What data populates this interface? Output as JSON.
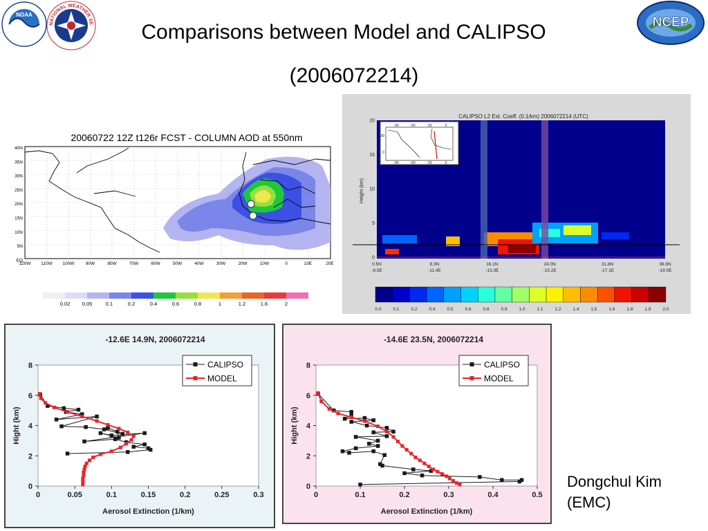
{
  "slide": {
    "title_line1": "Comparisons between Model and CALIPSO",
    "title_line2": "(2006072214)",
    "author_name": "Dongchul Kim",
    "author_org": "(EMC)"
  },
  "logos": {
    "noaa": "NOAA",
    "nws": "NATIONAL WEATHER SERVICE",
    "ncep": "NCEP"
  },
  "aod_map": {
    "title": "20060722 12Z t126r FCST - COLUMN AOD at 550nm",
    "lat_labels": [
      "40N",
      "35N",
      "30N",
      "25N",
      "20N",
      "15N",
      "10N",
      "5N",
      "EQ"
    ],
    "lon_labels": [
      "120W",
      "110W",
      "100W",
      "90W",
      "80W",
      "70W",
      "60W",
      "50W",
      "40W",
      "30W",
      "20W",
      "10W",
      "0",
      "10E",
      "20E"
    ],
    "colorbar_labels": [
      "0.02",
      "0.05",
      "0.1",
      "0.2",
      "0.4",
      "0.6",
      "0.8",
      "1",
      "1.2",
      "1.6",
      "2"
    ],
    "colorbar_colors": [
      "#f0f0f0",
      "#dcdcf8",
      "#b4b4f0",
      "#7a86ea",
      "#3c50e6",
      "#1ec83c",
      "#96e03c",
      "#f0e650",
      "#f0a032",
      "#e86428",
      "#e83c3c",
      "#f06eb4"
    ]
  },
  "calipso_curtain": {
    "title": "CALIPSO L2 Ext. Coeff. (0.1/km)  2006072214 (UTC)",
    "ylabel": "Height (km)",
    "y_ticks": [
      "20",
      "15",
      "10",
      "5",
      "0"
    ],
    "x_lat_labels": [
      "0.5N",
      "8.3N",
      "16.1N",
      "24.0N",
      "31.8N",
      "39.6N"
    ],
    "x_lon_labels": [
      "-9.5E",
      "-11.4E",
      "-13.3E",
      "-15.2E",
      "-17.1E",
      "-19.0E"
    ],
    "inset_lon_labels": [
      "-90",
      "-60",
      "-30",
      "0"
    ],
    "inset_lat_labels": [
      "30",
      "0"
    ],
    "colorbar_labels": [
      "0.0",
      "0.1",
      "0.2",
      "0.4",
      "0.5",
      "0.6",
      "0.8",
      "0.9",
      "1.0",
      "1.1",
      "1.2",
      "1.4",
      "1.5",
      "1.6",
      "1.8",
      "1.9",
      "2.0"
    ],
    "colorbar_colors": [
      "#00008c",
      "#0000c8",
      "#0028f0",
      "#0064ff",
      "#00a0ff",
      "#00d2ff",
      "#28ffdc",
      "#64ffa0",
      "#a0ff64",
      "#dcff28",
      "#fff000",
      "#ffbe00",
      "#ff8c00",
      "#ff5000",
      "#f01400",
      "#c80000",
      "#8c0000"
    ]
  },
  "chart_data": [
    {
      "type": "line",
      "title": "-12.6E 14.9N, 2006072214",
      "xlabel": "Aerosol Extinction (1/km)",
      "ylabel": "Hight (km)",
      "xlim": [
        0,
        0.3
      ],
      "ylim": [
        0,
        8
      ],
      "x_ticks": [
        "0",
        "0.05",
        "0.1",
        "0.15",
        "0.2",
        "0.25",
        "0.3"
      ],
      "y_ticks": [
        "0",
        "2",
        "4",
        "6",
        "8"
      ],
      "legend_position": "top-right",
      "series": [
        {
          "name": "CALIPSO",
          "color": "#1a1a1a",
          "marker": "square",
          "points": [
            [
              0.003,
              6.05
            ],
            [
              0.013,
              5.3
            ],
            [
              0.035,
              5.15
            ],
            [
              0.055,
              5.05
            ],
            [
              0.038,
              4.9
            ],
            [
              0.06,
              4.75
            ],
            [
              0.025,
              4.4
            ],
            [
              0.08,
              4.6
            ],
            [
              0.032,
              3.95
            ],
            [
              0.065,
              3.9
            ],
            [
              0.09,
              3.75
            ],
            [
              0.115,
              3.45
            ],
            [
              0.095,
              3.85
            ],
            [
              0.108,
              3.6
            ],
            [
              0.11,
              3.2
            ],
            [
              0.085,
              3.5
            ],
            [
              0.1,
              3.35
            ],
            [
              0.145,
              3.5
            ],
            [
              0.063,
              2.95
            ],
            [
              0.105,
              3.1
            ],
            [
              0.12,
              2.9
            ],
            [
              0.145,
              2.75
            ],
            [
              0.13,
              2.6
            ],
            [
              0.15,
              2.5
            ],
            [
              0.153,
              2.4
            ],
            [
              0.122,
              2.25
            ],
            [
              0.04,
              2.15
            ]
          ]
        },
        {
          "name": "MODEL",
          "color": "#e8252a",
          "marker": "square",
          "points": [
            [
              0.061,
              0.1
            ],
            [
              0.061,
              0.3
            ],
            [
              0.061,
              0.5
            ],
            [
              0.062,
              0.7
            ],
            [
              0.062,
              0.9
            ],
            [
              0.063,
              1.1
            ],
            [
              0.064,
              1.3
            ],
            [
              0.066,
              1.5
            ],
            [
              0.07,
              1.7
            ],
            [
              0.075,
              1.9
            ],
            [
              0.085,
              2.1
            ],
            [
              0.1,
              2.3
            ],
            [
              0.112,
              2.55
            ],
            [
              0.12,
              2.8
            ],
            [
              0.127,
              3.05
            ],
            [
              0.13,
              3.3
            ],
            [
              0.122,
              3.55
            ],
            [
              0.11,
              3.8
            ],
            [
              0.095,
              4.05
            ],
            [
              0.08,
              4.3
            ],
            [
              0.06,
              4.6
            ],
            [
              0.04,
              4.9
            ],
            [
              0.022,
              5.2
            ],
            [
              0.01,
              5.5
            ],
            [
              0.004,
              5.8
            ],
            [
              0.002,
              6.1
            ]
          ]
        }
      ]
    },
    {
      "type": "line",
      "title": "-14.6E 23.5N, 2006072214",
      "xlabel": "Aerosol Extinction (1/km)",
      "ylabel": "Hight (km)",
      "xlim": [
        0,
        0.5
      ],
      "ylim": [
        0,
        8
      ],
      "x_ticks": [
        "0",
        "0.1",
        "0.2",
        "0.3",
        "0.4",
        "0.5"
      ],
      "y_ticks": [
        "0",
        "2",
        "4",
        "6",
        "8"
      ],
      "legend_position": "top-right",
      "series": [
        {
          "name": "CALIPSO",
          "color": "#1a1a1a",
          "marker": "square",
          "points": [
            [
              0.005,
              6.1
            ],
            [
              0.04,
              5.0
            ],
            [
              0.08,
              4.9
            ],
            [
              0.08,
              4.65
            ],
            [
              0.065,
              4.45
            ],
            [
              0.11,
              4.5
            ],
            [
              0.13,
              4.35
            ],
            [
              0.08,
              4.25
            ],
            [
              0.115,
              4.0
            ],
            [
              0.16,
              3.85
            ],
            [
              0.175,
              3.6
            ],
            [
              0.13,
              3.55
            ],
            [
              0.16,
              3.3
            ],
            [
              0.09,
              3.25
            ],
            [
              0.14,
              3.0
            ],
            [
              0.12,
              2.8
            ],
            [
              0.14,
              2.65
            ],
            [
              0.09,
              2.5
            ],
            [
              0.06,
              2.3
            ],
            [
              0.075,
              2.2
            ],
            [
              0.13,
              2.3
            ],
            [
              0.155,
              2.05
            ],
            [
              0.145,
              1.45
            ],
            [
              0.15,
              1.35
            ],
            [
              0.22,
              1.1
            ],
            [
              0.26,
              1.0
            ],
            [
              0.2,
              0.85
            ],
            [
              0.24,
              0.7
            ],
            [
              0.37,
              0.6
            ],
            [
              0.42,
              0.4
            ],
            [
              0.465,
              0.4
            ],
            [
              0.46,
              0.3
            ],
            [
              0.1,
              0.1
            ]
          ]
        },
        {
          "name": "MODEL",
          "color": "#e8252a",
          "marker": "square",
          "points": [
            [
              0.005,
              6.15
            ],
            [
              0.012,
              5.6
            ],
            [
              0.03,
              5.1
            ],
            [
              0.05,
              4.8
            ],
            [
              0.08,
              4.55
            ],
            [
              0.11,
              4.3
            ],
            [
              0.14,
              3.95
            ],
            [
              0.16,
              3.6
            ],
            [
              0.175,
              3.25
            ],
            [
              0.185,
              2.95
            ],
            [
              0.195,
              2.65
            ],
            [
              0.205,
              2.4
            ],
            [
              0.215,
              2.15
            ],
            [
              0.225,
              1.9
            ],
            [
              0.235,
              1.7
            ],
            [
              0.245,
              1.5
            ],
            [
              0.255,
              1.3
            ],
            [
              0.265,
              1.1
            ],
            [
              0.275,
              0.95
            ],
            [
              0.285,
              0.8
            ],
            [
              0.295,
              0.65
            ],
            [
              0.302,
              0.5
            ],
            [
              0.31,
              0.35
            ],
            [
              0.318,
              0.2
            ],
            [
              0.325,
              0.1
            ]
          ]
        }
      ]
    }
  ]
}
